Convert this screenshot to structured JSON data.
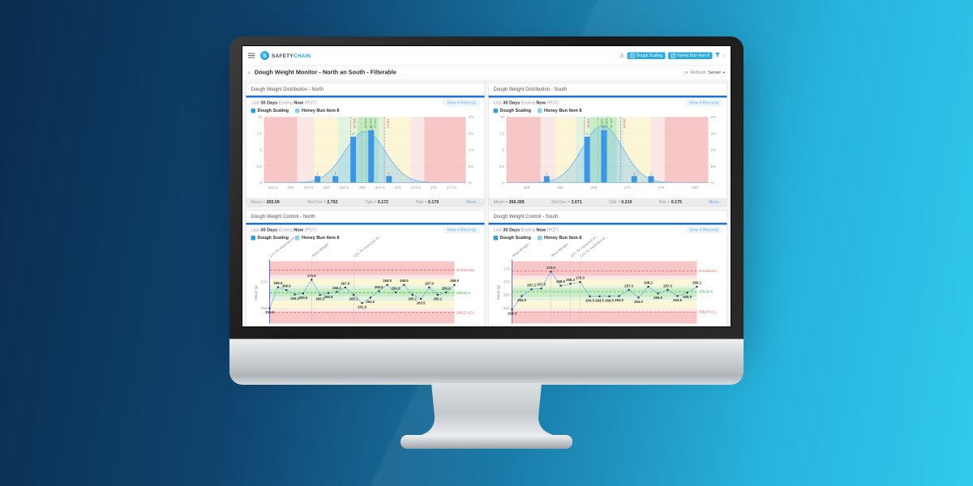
{
  "background": {
    "gradient_from": "#0a2c4e",
    "gradient_to": "#31c9ec"
  },
  "header": {
    "brand_primary": "SAFETY",
    "brand_secondary": "CHAIN",
    "logo_letter": "S",
    "warning_icon": "⚠",
    "filter_chips": [
      {
        "label": "Dough Scaling"
      },
      {
        "label": "Honey Bun Item 8"
      }
    ],
    "chevron": "›"
  },
  "titlebar": {
    "back": "‹",
    "page_title": "Dough Weight Monitor - North an South - Filterable",
    "refresh_icon": "⟳",
    "refresh_label": "Refresh",
    "server_label": "Server",
    "caret": "▾"
  },
  "panels": [
    {
      "title": "Dough Weight Distribution - North",
      "range": {
        "r1": "Last",
        "r2": "30 Days",
        "r3": "Ending",
        "r4": "Now",
        "r5": "(PDT)"
      },
      "records_link": "View 4 Records",
      "legend": [
        {
          "label": "Dough Scaling"
        },
        {
          "label": "Honey Bun Item 8"
        }
      ],
      "stats": [
        {
          "label": "Mean =",
          "value": "265.59"
        },
        {
          "label": "Std Dev =",
          "value": "2.792"
        },
        {
          "label": "Cpk =",
          "value": "0.172"
        },
        {
          "label": "Ppk =",
          "value": "0.179"
        }
      ],
      "more_label": "More..."
    },
    {
      "title": "Dough Weight Distribution - South",
      "range": {
        "r1": "Last",
        "r2": "30 Days",
        "r3": "Ending",
        "r4": "Now",
        "r5": "(PDT)"
      },
      "records_link": "View 6 Records",
      "legend": [
        {
          "label": "Dough Scaling"
        },
        {
          "label": "Honey Bun Item 8"
        }
      ],
      "stats": [
        {
          "label": "Mean =",
          "value": "266.309"
        },
        {
          "label": "Std Dev =",
          "value": "3.071"
        },
        {
          "label": "Cpk =",
          "value": "0.210"
        },
        {
          "label": "Ppk =",
          "value": "0.175"
        }
      ],
      "more_label": "More..."
    },
    {
      "title": "Dough Weight Control - North",
      "range": {
        "r1": "Last",
        "r2": "30 Days",
        "r3": "Ending",
        "r4": "Now",
        "r5": "(PDT)"
      },
      "records_link": "View 4 Records",
      "legend": [
        {
          "label": "Dough Scaling"
        },
        {
          "label": "Honey Bun Item 8"
        }
      ]
    },
    {
      "title": "Dough Weight Control - South",
      "range": {
        "r1": "Last",
        "r2": "30 Days",
        "r3": "Ending",
        "r4": "Now",
        "r5": "(PDT)"
      },
      "records_link": "View 6 Records",
      "legend": [
        {
          "label": "Dough Scaling"
        },
        {
          "label": "Honey Bun Item 8"
        }
      ]
    }
  ],
  "chart_data": [
    {
      "type": "bar",
      "subtype": "histogram",
      "title": "Dough Weight Distribution - North",
      "xlim": [
        251.25,
        279.5
      ],
      "xticks": [
        252.5,
        255,
        257.5,
        260,
        262.5,
        265,
        267.5,
        270,
        272.5,
        275,
        277.5
      ],
      "ylim": [
        0,
        10
      ],
      "yticks": [
        0,
        2.5,
        5,
        7.5,
        10
      ],
      "right_ticks": [
        "%",
        "1%",
        "1%",
        "2%",
        "2%"
      ],
      "zones": [
        {
          "from": 251.25,
          "to": 255.9,
          "color": "#f7c6c6"
        },
        {
          "from": 255.9,
          "to": 258.3,
          "color": "#fce7e7"
        },
        {
          "from": 258.3,
          "to": 261.6,
          "color": "#fdf6d6"
        },
        {
          "from": 261.6,
          "to": 264.3,
          "color": "#e2f4df"
        },
        {
          "from": 264.3,
          "to": 267.3,
          "color": "#c9ecc5"
        },
        {
          "from": 267.3,
          "to": 268.3,
          "color": "#e2f4df"
        },
        {
          "from": 268.3,
          "to": 271.7,
          "color": "#fdf6d6"
        },
        {
          "from": 271.7,
          "to": 273.7,
          "color": "#fce7e7"
        },
        {
          "from": 273.7,
          "to": 279.5,
          "color": "#f7c6c6"
        }
      ],
      "curve": {
        "mean": 265.4,
        "sd": 2.85,
        "peak": 7.8,
        "stroke": "#66b0e8",
        "fill": "rgba(130,195,240,0.38)"
      },
      "bars": [
        {
          "x": 258.75,
          "h": 1
        },
        {
          "x": 261.25,
          "h": 1
        },
        {
          "x": 263.75,
          "h": 7
        },
        {
          "x": 266.25,
          "h": 8
        },
        {
          "x": 268.75,
          "h": 1
        }
      ],
      "bar_color": "#3b97e3",
      "vlines": [
        {
          "x": 263.4,
          "color": "#e34f4f",
          "dash": "5,3",
          "label": "263.43"
        },
        {
          "x": 268.1,
          "color": "#e34f4f",
          "dash": "5,3",
          "label": "268.12"
        },
        {
          "x": 264.9,
          "color": "#43a047",
          "dash": "2,3",
          "label": "264.95"
        },
        {
          "x": 265.6,
          "color": "#43a047",
          "dash": "2,3",
          "label": "265.59"
        },
        {
          "x": 266.3,
          "color": "#43a047",
          "dash": "2,3",
          "label": "266.23"
        }
      ],
      "stats": {
        "mean": 265.59,
        "std_dev": 2.792,
        "cpk": 0.172,
        "ppk": 0.179
      }
    },
    {
      "type": "bar",
      "subtype": "histogram",
      "title": "Dough Weight Distribution - South",
      "xlim": [
        252,
        282
      ],
      "xticks": [
        255,
        260,
        265,
        270,
        275,
        280
      ],
      "ylim": [
        0,
        10
      ],
      "yticks": [
        0,
        2.5,
        5,
        7.5,
        10
      ],
      "right_ticks": [
        "%",
        "1%",
        "1%",
        "2%",
        "2%"
      ],
      "zones": [
        {
          "from": 252,
          "to": 257.1,
          "color": "#f7c6c6"
        },
        {
          "from": 257.1,
          "to": 259.4,
          "color": "#fce7e7"
        },
        {
          "from": 259.4,
          "to": 262.3,
          "color": "#fdf6d6"
        },
        {
          "from": 262.3,
          "to": 264.4,
          "color": "#e2f4df"
        },
        {
          "from": 264.4,
          "to": 268.4,
          "color": "#c9ecc5"
        },
        {
          "from": 268.4,
          "to": 269.5,
          "color": "#e2f4df"
        },
        {
          "from": 269.5,
          "to": 273.4,
          "color": "#fdf6d6"
        },
        {
          "from": 273.4,
          "to": 275.5,
          "color": "#fce7e7"
        },
        {
          "from": 275.5,
          "to": 282,
          "color": "#f7c6c6"
        }
      ],
      "curve": {
        "mean": 266.3,
        "sd": 3.0,
        "peak": 8.7,
        "stroke": "#66b0e8",
        "fill": "rgba(130,195,240,0.38)"
      },
      "bars": [
        {
          "x": 258,
          "h": 1
        },
        {
          "x": 264,
          "h": 7
        },
        {
          "x": 266.5,
          "h": 8
        },
        {
          "x": 271,
          "h": 1
        },
        {
          "x": 273.5,
          "h": 1
        }
      ],
      "bar_color": "#3b97e3",
      "vlines": [
        {
          "x": 263.6,
          "color": "#e34f4f",
          "dash": "5,3",
          "label": "263.62"
        },
        {
          "x": 269.0,
          "color": "#e34f4f",
          "dash": "5,3",
          "label": "269.00"
        },
        {
          "x": 265.6,
          "color": "#43a047",
          "dash": "2,3",
          "label": "265.56"
        },
        {
          "x": 266.3,
          "color": "#43a047",
          "dash": "2,3",
          "label": "266.31"
        },
        {
          "x": 267.0,
          "color": "#43a047",
          "dash": "2,3",
          "label": "267.05"
        }
      ],
      "stats": {
        "mean": 266.309,
        "std_dev": 3.071,
        "cpk": 0.21,
        "ppk": 0.175
      }
    },
    {
      "type": "line",
      "subtype": "control",
      "title": "Dough Weight Control - North",
      "ylabel": "Mean (g)",
      "ylim": [
        254,
        278
      ],
      "yticks": [
        260,
        270
      ],
      "zones": [
        {
          "from": 272.6,
          "to": 278,
          "color": "#f7c6c6"
        },
        {
          "from": 271.3,
          "to": 272.6,
          "color": "#fce7e7"
        },
        {
          "from": 268.7,
          "to": 271.3,
          "color": "#fdf6d6"
        },
        {
          "from": 267.5,
          "to": 268.7,
          "color": "#e2f4df"
        },
        {
          "from": 264.4,
          "to": 267.5,
          "color": "#c9ecc5"
        },
        {
          "from": 262.9,
          "to": 264.4,
          "color": "#e2f4df"
        },
        {
          "from": 260.0,
          "to": 262.9,
          "color": "#fdf6d6"
        },
        {
          "from": 258.6,
          "to": 260.0,
          "color": "#fce7e7"
        },
        {
          "from": 254,
          "to": 258.6,
          "color": "#f7c6c6"
        }
      ],
      "hlines": [
        {
          "y": 274.53,
          "label": "274.53 UCL",
          "color": "#e34f4f"
        },
        {
          "y": 265.92,
          "label": "265.92 X",
          "color": "#43a047"
        },
        {
          "y": 258.27,
          "label": "258.27 LCL",
          "color": "#e34f4f"
        }
      ],
      "points": [
        259.9,
        268.0,
        266.9,
        265.2,
        265.6,
        270.9,
        265.0,
        265.8,
        266.2,
        267.9,
        265.1,
        261.9,
        264.0,
        266.5,
        268.9,
        266.0,
        268.9,
        265.1,
        263.5,
        267.9,
        265.1,
        266.0,
        268.9
      ],
      "line_color": "#74b6e2",
      "vlines": [
        {
          "i": 0,
          "color": "#6b66e0",
          "label": "LCL for expected wt..."
        },
        {
          "i": 5,
          "color": "#c4c4c4",
          "label": "Mean Weight"
        },
        {
          "i": 10,
          "color": "#c4c4c4",
          "label": "UCL for expected wt..."
        }
      ]
    },
    {
      "type": "line",
      "subtype": "control",
      "title": "Dough Weight Control - South",
      "ylabel": "Mean (g)",
      "ylim": [
        254,
        278
      ],
      "yticks": [
        260,
        265,
        270,
        275
      ],
      "zones": [
        {
          "from": 272.4,
          "to": 278,
          "color": "#f7c6c6"
        },
        {
          "from": 271.0,
          "to": 272.4,
          "color": "#fce7e7"
        },
        {
          "from": 268.6,
          "to": 271.0,
          "color": "#fdf6d6"
        },
        {
          "from": 267.6,
          "to": 268.6,
          "color": "#e2f4df"
        },
        {
          "from": 264.2,
          "to": 267.6,
          "color": "#c9ecc5"
        },
        {
          "from": 262.8,
          "to": 264.2,
          "color": "#e2f4df"
        },
        {
          "from": 259.9,
          "to": 262.8,
          "color": "#fdf6d6"
        },
        {
          "from": 258.5,
          "to": 259.9,
          "color": "#fce7e7"
        },
        {
          "from": 254,
          "to": 258.5,
          "color": "#f7c6c6"
        }
      ],
      "hlines": [
        {
          "y": 274.28,
          "label": "274.28 UCL",
          "color": "#e34f4f"
        },
        {
          "y": 266.3,
          "label": "266.30 X",
          "color": "#43a047"
        },
        {
          "y": 258.47,
          "label": "258.47 LCL",
          "color": "#e34f4f"
        }
      ],
      "points": [
        259.4,
        264.6,
        267.2,
        267.5,
        274.0,
        268.6,
        269.3,
        270.0,
        264.5,
        264.5,
        264.5,
        264.6,
        267.0,
        264.0,
        268.2,
        265.6,
        267.0,
        264.6,
        265.9,
        268.2
      ],
      "line_color": "#74b6e2",
      "vlines": [
        {
          "i": 0,
          "color": "#6b66e0",
          "label": "Mean Weight"
        },
        {
          "i": 4,
          "color": "#c4c4c4",
          "label": "Mean Weight"
        },
        {
          "i": 6,
          "color": "#c4c4c4",
          "label": "UCL for expected wt..."
        },
        {
          "i": 7,
          "color": "#c4c4c4",
          "label": "LCL for expected wt..."
        }
      ]
    }
  ]
}
